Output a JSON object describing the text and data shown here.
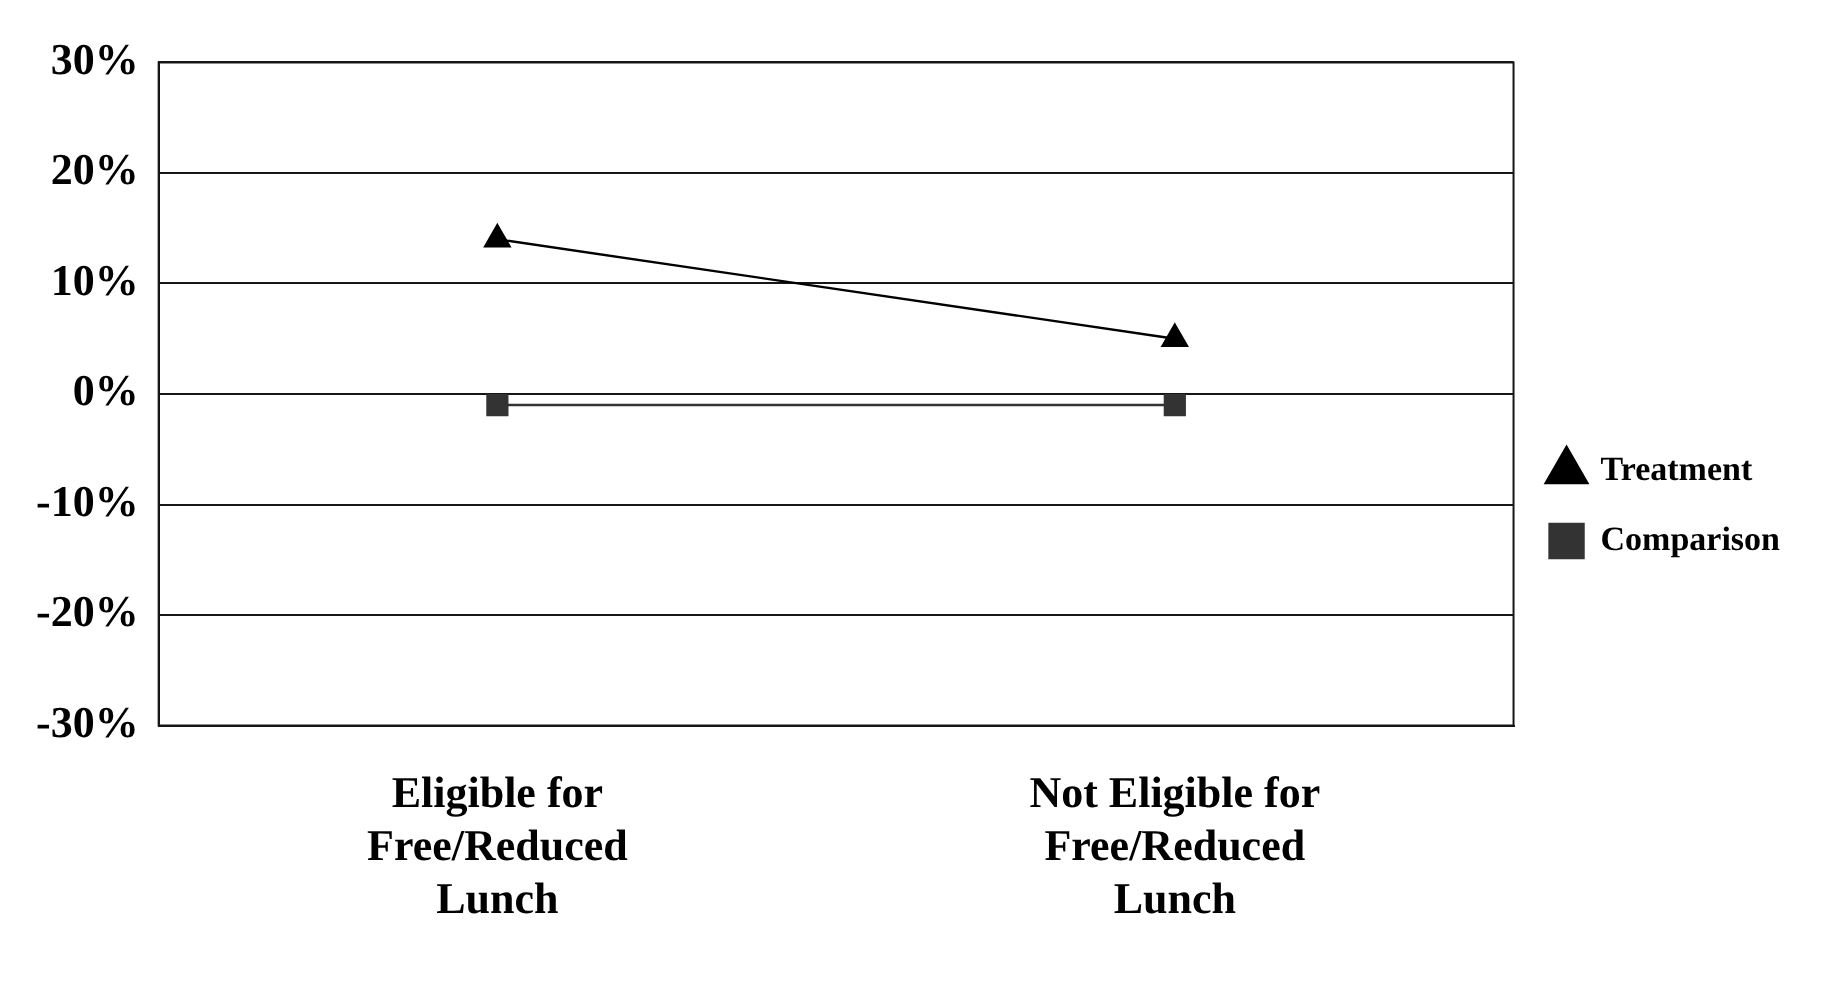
{
  "chart_data": {
    "type": "line",
    "categories": [
      "Eligible for Free/Reduced Lunch",
      "Not Eligible for Free/Reduced Lunch"
    ],
    "series": [
      {
        "name": "Treatment",
        "color": "#000000",
        "marker": "triangle",
        "values": [
          14,
          5
        ]
      },
      {
        "name": "Comparison",
        "color": "#333333",
        "marker": "square",
        "values": [
          -1,
          -1
        ]
      }
    ],
    "ylim": [
      -30,
      30
    ],
    "yticks": [
      {
        "value": -30,
        "label": "-30%"
      },
      {
        "value": -20,
        "label": "-20%"
      },
      {
        "value": -10,
        "label": "-10%"
      },
      {
        "value": 0,
        "label": "0%"
      },
      {
        "value": 10,
        "label": "10%"
      },
      {
        "value": 20,
        "label": "20%"
      },
      {
        "value": 30,
        "label": "30%"
      }
    ],
    "grid": "y",
    "legend": "right",
    "line_style": "solid"
  }
}
